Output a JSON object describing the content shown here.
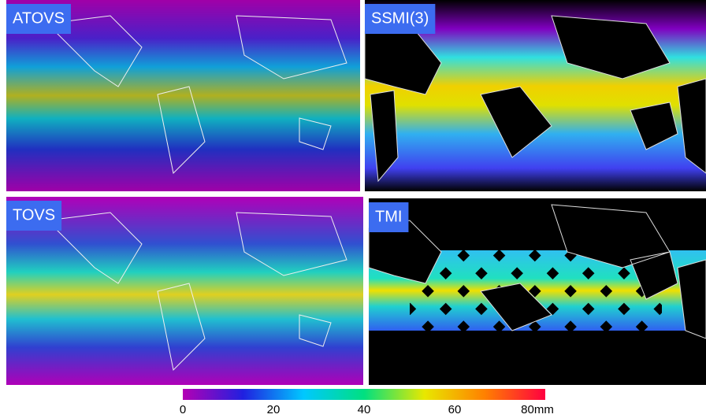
{
  "panels": [
    {
      "label": "ATOVS"
    },
    {
      "label": "SSMI(3)"
    },
    {
      "label": "TOVS"
    },
    {
      "label": "TMI"
    }
  ],
  "colorbar": {
    "lim": [
      0,
      80
    ],
    "ticks": [
      0,
      20,
      40,
      60,
      {
        "value": 80,
        "label": "80mm"
      }
    ],
    "colors": [
      "#b400b4",
      "#2020e0",
      "#00c8ff",
      "#00e080",
      "#e8e800",
      "#ff8000",
      "#ff0040"
    ]
  }
}
